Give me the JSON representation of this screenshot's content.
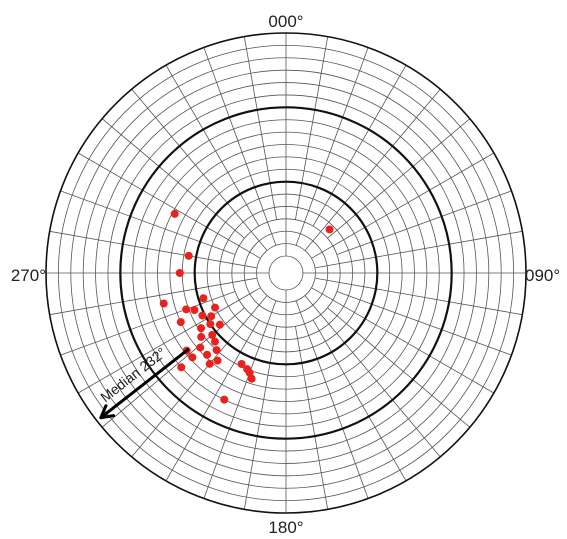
{
  "chart_data": {
    "type": "scatter",
    "projection": "polar",
    "title": "",
    "direction_labels": {
      "north": "000°",
      "east": "090°",
      "south": "180°",
      "west": "270°"
    },
    "radial_range": [
      0,
      90
    ],
    "major_rings": [
      30,
      60,
      90
    ],
    "grid": true,
    "point_color": "#e8221d",
    "median": {
      "label": "Median 232°",
      "azimuth": 232
    },
    "points": [
      {
        "azimuth": 298,
        "value": 44
      },
      {
        "azimuth": 45,
        "value": 18
      },
      {
        "azimuth": 280,
        "value": 33
      },
      {
        "azimuth": 270,
        "value": 36
      },
      {
        "azimuth": 250,
        "value": 36
      },
      {
        "azimuth": 253,
        "value": 28
      },
      {
        "azimuth": 248,
        "value": 33
      },
      {
        "azimuth": 244,
        "value": 25
      },
      {
        "azimuth": 243,
        "value": 31
      },
      {
        "azimuth": 240,
        "value": 28
      },
      {
        "azimuth": 237,
        "value": 34
      },
      {
        "azimuth": 236,
        "value": 30
      },
      {
        "azimuth": 233,
        "value": 36
      },
      {
        "azimuth": 232,
        "value": 27
      },
      {
        "azimuth": 230,
        "value": 32
      },
      {
        "azimuth": 229,
        "value": 39
      },
      {
        "azimuth": 228,
        "value": 44
      },
      {
        "azimuth": 226,
        "value": 33
      },
      {
        "azimuth": 224,
        "value": 39
      },
      {
        "azimuth": 222,
        "value": 35
      },
      {
        "azimuth": 220,
        "value": 41
      },
      {
        "azimuth": 218,
        "value": 38
      },
      {
        "azimuth": 232,
        "value": 44
      },
      {
        "azimuth": 245,
        "value": 40
      },
      {
        "azimuth": 228,
        "value": 50
      },
      {
        "azimuth": 206,
        "value": 34
      },
      {
        "azimuth": 202,
        "value": 35
      },
      {
        "azimuth": 200,
        "value": 36
      },
      {
        "azimuth": 198,
        "value": 38
      },
      {
        "azimuth": 206,
        "value": 50
      },
      {
        "azimuth": 256,
        "value": 44
      }
    ]
  }
}
